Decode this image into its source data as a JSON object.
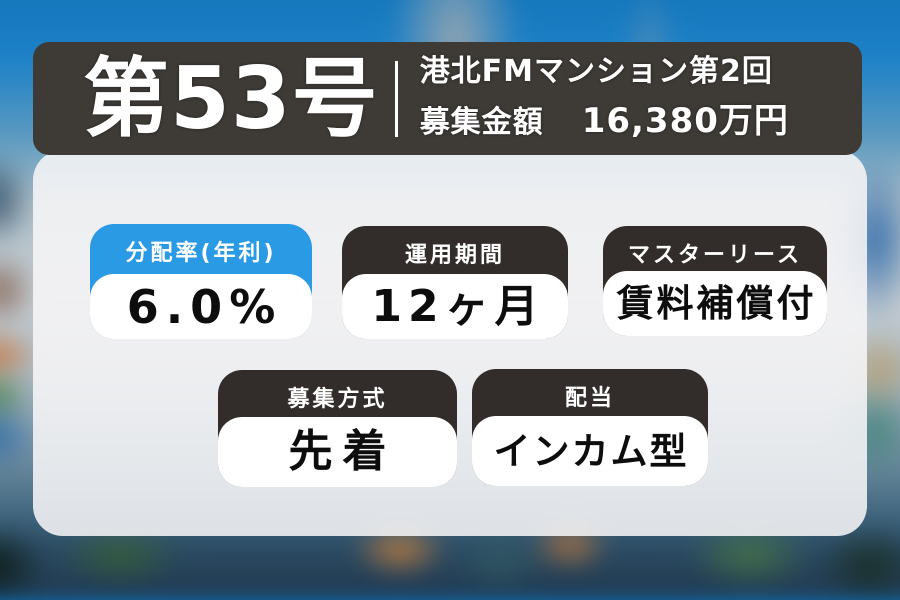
{
  "banner": {
    "issue_number": "第53号",
    "property_name": "港北FMマンション第2回",
    "amount_label": "募集金額",
    "amount_value": "16,380万円"
  },
  "cards": [
    {
      "label": "分配率(年利)",
      "value": "6.0%"
    },
    {
      "label": "運用期間",
      "value": "12ヶ月"
    },
    {
      "label": "マスターリース",
      "value": "賃料補償付"
    },
    {
      "label": "募集方式",
      "value": "先着"
    },
    {
      "label": "配当",
      "value": "インカム型"
    }
  ],
  "colors": {
    "accent_blue": "#2b9ae5",
    "card_header_dark": "#322d2a",
    "banner_background": "#3e3a36",
    "card_body_background": "#ffffff",
    "text_on_dark": "#ffffff",
    "value_text": "#0d0d0d",
    "sky_blue": "#1173b8"
  }
}
